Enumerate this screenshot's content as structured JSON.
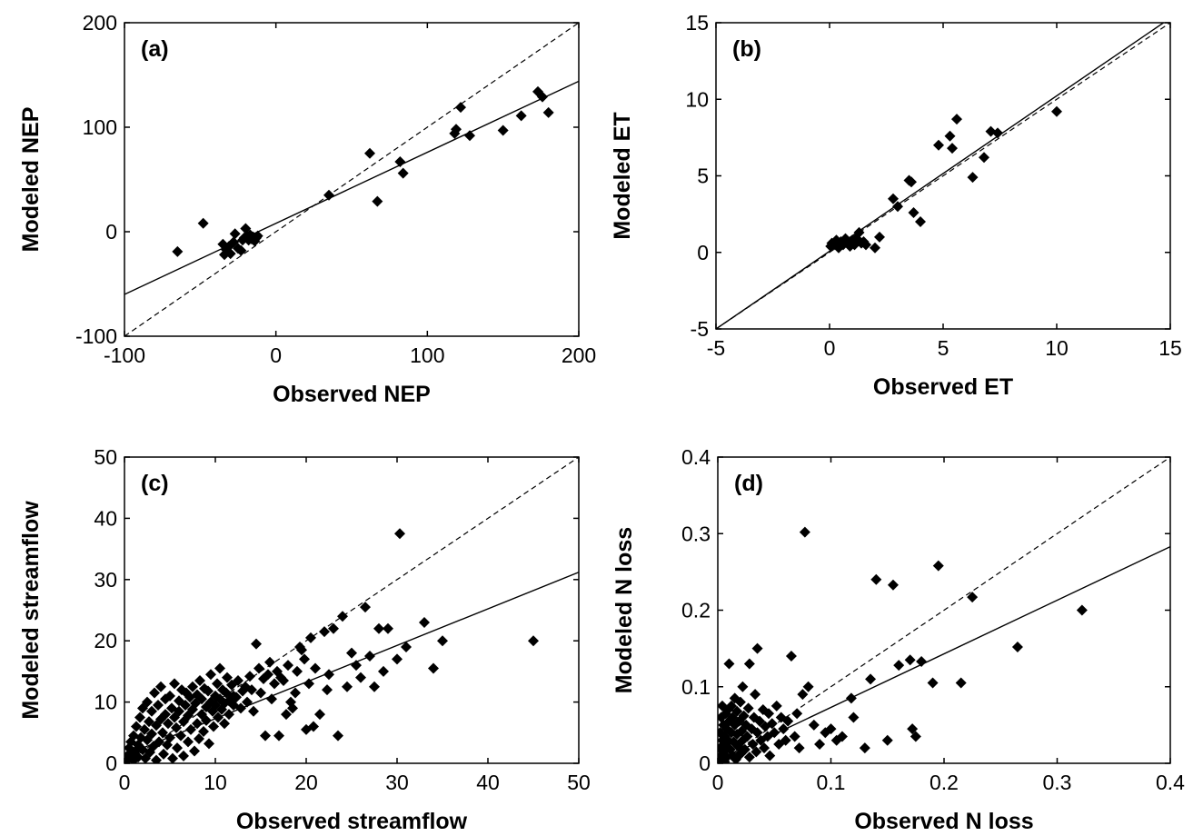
{
  "chart_data": [
    {
      "type": "scatter",
      "panel_label": "(a)",
      "xlabel": "Observed NEP",
      "ylabel": "Modeled NEP",
      "xlim": [
        -100,
        200
      ],
      "ylim": [
        -100,
        200
      ],
      "xticks": [
        -100,
        0,
        100,
        200
      ],
      "yticks": [
        -100,
        0,
        100,
        200
      ],
      "grid": false,
      "fit_line": {
        "x": [
          -100,
          200
        ],
        "y": [
          -60,
          144
        ]
      },
      "one_to_one_line": {
        "x": [
          -100,
          200
        ],
        "y": [
          -100,
          200
        ]
      },
      "points": [
        [
          -65,
          -19
        ],
        [
          -48,
          8
        ],
        [
          -35,
          -12
        ],
        [
          -34,
          -22
        ],
        [
          -33,
          -17
        ],
        [
          -31,
          -14
        ],
        [
          -30,
          -21
        ],
        [
          -28,
          -10
        ],
        [
          -27,
          -2
        ],
        [
          -25,
          -16
        ],
        [
          -23,
          -18
        ],
        [
          -22,
          -8
        ],
        [
          -21,
          -6
        ],
        [
          -20,
          3
        ],
        [
          -19,
          -4
        ],
        [
          -18,
          -8
        ],
        [
          -17,
          -3
        ],
        [
          -16,
          -7
        ],
        [
          -15,
          -5
        ],
        [
          -14,
          -9
        ],
        [
          -13,
          -6
        ],
        [
          -12,
          -4
        ],
        [
          35,
          35
        ],
        [
          62,
          75
        ],
        [
          67,
          29
        ],
        [
          82,
          67
        ],
        [
          84,
          56
        ],
        [
          118,
          94
        ],
        [
          119,
          98
        ],
        [
          122,
          119
        ],
        [
          128,
          92
        ],
        [
          150,
          97
        ],
        [
          162,
          111
        ],
        [
          173,
          134
        ],
        [
          176,
          129
        ],
        [
          180,
          114
        ]
      ]
    },
    {
      "type": "scatter",
      "panel_label": "(b)",
      "xlabel": "Observed ET",
      "ylabel": "Modeled ET",
      "xlim": [
        -5,
        15
      ],
      "ylim": [
        -5,
        15
      ],
      "xticks": [
        -5,
        0,
        5,
        10,
        15
      ],
      "yticks": [
        -5,
        0,
        5,
        10,
        15
      ],
      "grid": false,
      "fit_line": {
        "x": [
          -5,
          15
        ],
        "y": [
          -5,
          15.3
        ]
      },
      "one_to_one_line": {
        "x": [
          -5,
          15
        ],
        "y": [
          -5,
          15
        ]
      },
      "points": [
        [
          0.05,
          0.4
        ],
        [
          0.1,
          0.6
        ],
        [
          0.2,
          0.5
        ],
        [
          0.3,
          0.8
        ],
        [
          0.4,
          0.3
        ],
        [
          0.5,
          0.7
        ],
        [
          0.6,
          0.5
        ],
        [
          0.7,
          0.9
        ],
        [
          0.8,
          0.6
        ],
        [
          0.9,
          0.4
        ],
        [
          1.0,
          0.8
        ],
        [
          1.1,
          0.5
        ],
        [
          1.2,
          0.9
        ],
        [
          1.3,
          1.3
        ],
        [
          1.4,
          0.6
        ],
        [
          1.5,
          0.7
        ],
        [
          1.6,
          0.5
        ],
        [
          2.0,
          0.3
        ],
        [
          2.2,
          1.0
        ],
        [
          2.8,
          3.5
        ],
        [
          3.0,
          3.0
        ],
        [
          3.5,
          4.7
        ],
        [
          3.6,
          4.6
        ],
        [
          3.7,
          2.6
        ],
        [
          4.0,
          2.0
        ],
        [
          4.8,
          7.0
        ],
        [
          5.3,
          7.6
        ],
        [
          5.4,
          6.8
        ],
        [
          5.6,
          8.7
        ],
        [
          6.3,
          4.9
        ],
        [
          6.8,
          6.2
        ],
        [
          7.1,
          7.9
        ],
        [
          7.4,
          7.8
        ],
        [
          10.0,
          9.2
        ]
      ]
    },
    {
      "type": "scatter",
      "panel_label": "(c)",
      "xlabel": "Observed streamflow",
      "ylabel": "Modeled streamflow",
      "xlim": [
        0,
        50
      ],
      "ylim": [
        0,
        50
      ],
      "xticks": [
        0,
        10,
        20,
        30,
        40,
        50
      ],
      "yticks": [
        0,
        10,
        20,
        30,
        40,
        50
      ],
      "grid": false,
      "fit_line": {
        "x": [
          0,
          50
        ],
        "y": [
          1.3,
          31.2
        ]
      },
      "one_to_one_line": {
        "x": [
          0,
          50
        ],
        "y": [
          0,
          50
        ]
      },
      "points": [
        [
          0.2,
          0.5
        ],
        [
          0.3,
          1.2
        ],
        [
          0.5,
          0.8
        ],
        [
          0.5,
          2.5
        ],
        [
          0.7,
          3.5
        ],
        [
          0.8,
          1.5
        ],
        [
          1.0,
          4.5
        ],
        [
          1.0,
          0.5
        ],
        [
          1.2,
          2.0
        ],
        [
          1.3,
          6.0
        ],
        [
          1.5,
          3.0
        ],
        [
          1.5,
          1.0
        ],
        [
          1.7,
          7.5
        ],
        [
          1.8,
          4.2
        ],
        [
          2.0,
          2.2
        ],
        [
          2.0,
          9.0
        ],
        [
          2.2,
          5.5
        ],
        [
          2.3,
          0.8
        ],
        [
          2.5,
          3.8
        ],
        [
          2.5,
          10.0
        ],
        [
          2.7,
          6.8
        ],
        [
          2.8,
          1.8
        ],
        [
          3.0,
          8.5
        ],
        [
          3.0,
          4.8
        ],
        [
          3.2,
          2.8
        ],
        [
          3.3,
          11.5
        ],
        [
          3.5,
          6.2
        ],
        [
          3.5,
          0.5
        ],
        [
          3.7,
          9.5
        ],
        [
          3.8,
          3.5
        ],
        [
          4.0,
          7.2
        ],
        [
          4.0,
          12.5
        ],
        [
          4.2,
          5.0
        ],
        [
          4.3,
          1.5
        ],
        [
          4.5,
          10.5
        ],
        [
          4.5,
          8.0
        ],
        [
          4.7,
          3.0
        ],
        [
          4.8,
          6.5
        ],
        [
          5.0,
          11.0
        ],
        [
          5.0,
          4.2
        ],
        [
          5.2,
          9.0
        ],
        [
          5.3,
          0.8
        ],
        [
          5.5,
          7.5
        ],
        [
          5.5,
          13.0
        ],
        [
          5.7,
          5.8
        ],
        [
          5.8,
          2.5
        ],
        [
          6.0,
          10.2
        ],
        [
          6.0,
          8.5
        ],
        [
          6.2,
          4.5
        ],
        [
          6.3,
          12.0
        ],
        [
          6.5,
          6.8
        ],
        [
          6.5,
          1.2
        ],
        [
          6.7,
          9.5
        ],
        [
          6.8,
          11.5
        ],
        [
          7.0,
          7.8
        ],
        [
          7.0,
          3.5
        ],
        [
          7.2,
          10.8
        ],
        [
          7.3,
          5.5
        ],
        [
          7.5,
          12.5
        ],
        [
          7.5,
          8.8
        ],
        [
          7.7,
          2.0
        ],
        [
          7.8,
          9.8
        ],
        [
          8.0,
          6.5
        ],
        [
          8.0,
          11.2
        ],
        [
          8.2,
          4.0
        ],
        [
          8.3,
          13.5
        ],
        [
          8.5,
          8.0
        ],
        [
          8.5,
          10.5
        ],
        [
          8.7,
          5.2
        ],
        [
          8.8,
          12.2
        ],
        [
          9.0,
          9.2
        ],
        [
          9.0,
          7.0
        ],
        [
          9.2,
          11.8
        ],
        [
          9.3,
          3.2
        ],
        [
          9.5,
          10.0
        ],
        [
          9.5,
          14.5
        ],
        [
          9.7,
          8.5
        ],
        [
          9.8,
          6.0
        ],
        [
          10.0,
          11.0
        ],
        [
          10.0,
          9.5
        ],
        [
          10.2,
          13.0
        ],
        [
          10.3,
          7.5
        ],
        [
          10.5,
          10.5
        ],
        [
          10.5,
          15.5
        ],
        [
          10.7,
          8.8
        ],
        [
          10.8,
          12.0
        ],
        [
          11.0,
          9.8
        ],
        [
          11.0,
          6.5
        ],
        [
          11.2,
          11.5
        ],
        [
          11.3,
          14.0
        ],
        [
          11.5,
          10.2
        ],
        [
          11.5,
          8.0
        ],
        [
          11.8,
          12.8
        ],
        [
          12.0,
          9.5
        ],
        [
          12.0,
          11.0
        ],
        [
          12.3,
          10.8
        ],
        [
          12.5,
          13.5
        ],
        [
          12.8,
          9.0
        ],
        [
          13.0,
          11.8
        ],
        [
          13.3,
          12.5
        ],
        [
          13.5,
          10.0
        ],
        [
          13.8,
          14.2
        ],
        [
          14.0,
          12.0
        ],
        [
          14.2,
          8.5
        ],
        [
          14.5,
          19.5
        ],
        [
          14.8,
          15.5
        ],
        [
          15.0,
          11.5
        ],
        [
          15.3,
          13.8
        ],
        [
          15.5,
          4.5
        ],
        [
          15.8,
          14.5
        ],
        [
          16.0,
          16.5
        ],
        [
          16.2,
          10.5
        ],
        [
          16.5,
          13.0
        ],
        [
          16.8,
          15.0
        ],
        [
          17.0,
          4.5
        ],
        [
          17.2,
          14.0
        ],
        [
          17.5,
          13.5
        ],
        [
          17.8,
          8.0
        ],
        [
          18.0,
          16.0
        ],
        [
          18.3,
          10.0
        ],
        [
          18.5,
          9.0
        ],
        [
          18.8,
          11.5
        ],
        [
          19.0,
          15.0
        ],
        [
          19.3,
          19.0
        ],
        [
          19.5,
          18.5
        ],
        [
          19.8,
          17.0
        ],
        [
          20.0,
          5.5
        ],
        [
          20.3,
          13.0
        ],
        [
          20.5,
          20.5
        ],
        [
          20.8,
          6.0
        ],
        [
          21.0,
          15.5
        ],
        [
          21.5,
          8.0
        ],
        [
          22.0,
          21.5
        ],
        [
          22.3,
          12.0
        ],
        [
          22.5,
          14.5
        ],
        [
          23.0,
          22.0
        ],
        [
          23.5,
          4.5
        ],
        [
          24.0,
          24.0
        ],
        [
          24.5,
          12.5
        ],
        [
          25.0,
          18.0
        ],
        [
          25.5,
          16.0
        ],
        [
          26.0,
          14.0
        ],
        [
          26.5,
          25.5
        ],
        [
          27.0,
          17.5
        ],
        [
          27.5,
          12.5
        ],
        [
          28.0,
          22.0
        ],
        [
          28.5,
          15.0
        ],
        [
          29.0,
          22.0
        ],
        [
          30.0,
          17.0
        ],
        [
          30.3,
          37.5
        ],
        [
          31.0,
          19.0
        ],
        [
          33.0,
          23.0
        ],
        [
          34.0,
          15.5
        ],
        [
          35.0,
          20.0
        ],
        [
          45.0,
          20.0
        ]
      ]
    },
    {
      "type": "scatter",
      "panel_label": "(d)",
      "xlabel": "Observed N loss",
      "ylabel": "Modeled N loss",
      "xlim": [
        0,
        0.4
      ],
      "ylim": [
        0,
        0.4
      ],
      "xticks": [
        0,
        0.1,
        0.2,
        0.3,
        0.4
      ],
      "yticks": [
        0,
        0.1,
        0.2,
        0.3,
        0.4
      ],
      "grid": false,
      "fit_line": {
        "x": [
          0,
          0.4
        ],
        "y": [
          0.003,
          0.283
        ]
      },
      "one_to_one_line": {
        "x": [
          0,
          0.4
        ],
        "y": [
          0,
          0.4
        ]
      },
      "points": [
        [
          0.001,
          0.005
        ],
        [
          0.002,
          0.02
        ],
        [
          0.002,
          0.04
        ],
        [
          0.003,
          0.01
        ],
        [
          0.003,
          0.06
        ],
        [
          0.004,
          0.03
        ],
        [
          0.004,
          0.075
        ],
        [
          0.005,
          0.015
        ],
        [
          0.005,
          0.05
        ],
        [
          0.006,
          0.002
        ],
        [
          0.006,
          0.035
        ],
        [
          0.007,
          0.065
        ],
        [
          0.007,
          0.025
        ],
        [
          0.008,
          0.045
        ],
        [
          0.008,
          0.008
        ],
        [
          0.009,
          0.07
        ],
        [
          0.009,
          0.03
        ],
        [
          0.01,
          0.055
        ],
        [
          0.01,
          0.13
        ],
        [
          0.011,
          0.018
        ],
        [
          0.012,
          0.04
        ],
        [
          0.012,
          0.075
        ],
        [
          0.013,
          0.01
        ],
        [
          0.013,
          0.06
        ],
        [
          0.014,
          0.028
        ],
        [
          0.015,
          0.05
        ],
        [
          0.015,
          0.085
        ],
        [
          0.016,
          0.005
        ],
        [
          0.017,
          0.038
        ],
        [
          0.017,
          0.068
        ],
        [
          0.018,
          0.022
        ],
        [
          0.019,
          0.055
        ],
        [
          0.02,
          0.012
        ],
        [
          0.02,
          0.08
        ],
        [
          0.021,
          0.042
        ],
        [
          0.022,
          0.03
        ],
        [
          0.022,
          0.1
        ],
        [
          0.023,
          0.062
        ],
        [
          0.024,
          0.018
        ],
        [
          0.025,
          0.05
        ],
        [
          0.026,
          0.035
        ],
        [
          0.027,
          0.072
        ],
        [
          0.028,
          0.008
        ],
        [
          0.028,
          0.13
        ],
        [
          0.03,
          0.045
        ],
        [
          0.031,
          0.025
        ],
        [
          0.032,
          0.06
        ],
        [
          0.033,
          0.09
        ],
        [
          0.034,
          0.015
        ],
        [
          0.035,
          0.04
        ],
        [
          0.035,
          0.15
        ],
        [
          0.037,
          0.055
        ],
        [
          0.038,
          0.03
        ],
        [
          0.04,
          0.07
        ],
        [
          0.041,
          0.02
        ],
        [
          0.042,
          0.048
        ],
        [
          0.044,
          0.035
        ],
        [
          0.045,
          0.065
        ],
        [
          0.046,
          0.01
        ],
        [
          0.048,
          0.052
        ],
        [
          0.05,
          0.04
        ],
        [
          0.052,
          0.075
        ],
        [
          0.054,
          0.025
        ],
        [
          0.056,
          0.06
        ],
        [
          0.058,
          0.045
        ],
        [
          0.06,
          0.03
        ],
        [
          0.062,
          0.055
        ],
        [
          0.065,
          0.14
        ],
        [
          0.068,
          0.035
        ],
        [
          0.07,
          0.065
        ],
        [
          0.072,
          0.02
        ],
        [
          0.075,
          0.09
        ],
        [
          0.077,
          0.302
        ],
        [
          0.08,
          0.1
        ],
        [
          0.085,
          0.05
        ],
        [
          0.09,
          0.025
        ],
        [
          0.095,
          0.04
        ],
        [
          0.1,
          0.045
        ],
        [
          0.105,
          0.03
        ],
        [
          0.11,
          0.035
        ],
        [
          0.118,
          0.085
        ],
        [
          0.12,
          0.06
        ],
        [
          0.13,
          0.02
        ],
        [
          0.135,
          0.11
        ],
        [
          0.14,
          0.24
        ],
        [
          0.15,
          0.03
        ],
        [
          0.155,
          0.233
        ],
        [
          0.16,
          0.128
        ],
        [
          0.17,
          0.135
        ],
        [
          0.172,
          0.045
        ],
        [
          0.175,
          0.035
        ],
        [
          0.18,
          0.133
        ],
        [
          0.19,
          0.105
        ],
        [
          0.195,
          0.258
        ],
        [
          0.215,
          0.105
        ],
        [
          0.225,
          0.217
        ],
        [
          0.265,
          0.152
        ],
        [
          0.322,
          0.2
        ]
      ]
    }
  ]
}
